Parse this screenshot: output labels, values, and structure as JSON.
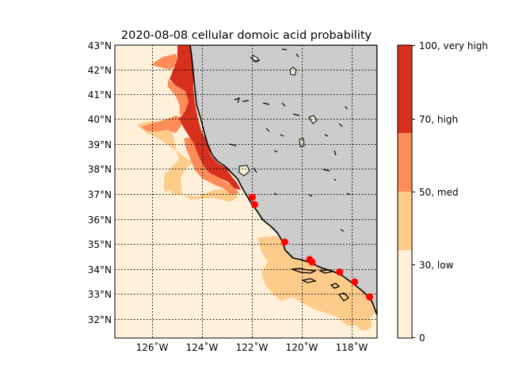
{
  "title": "2020-08-08 cellular domoic acid probability",
  "lat_labels": [
    "43°N",
    "42°N",
    "41°N",
    "40°N",
    "39°N",
    "38°N",
    "37°N",
    "36°N",
    "35°N",
    "34°N",
    "33°N",
    "32°N"
  ],
  "lon_labels": [
    "126˚W",
    "124˚W",
    "122˚W",
    "120˚W",
    "118˚W"
  ],
  "colorbar": {
    "labels": [
      "100, very high",
      "70, high",
      "50, med",
      "30, low",
      "0"
    ],
    "bands": [
      {
        "from": 70,
        "to": 100,
        "color": "#d7301f"
      },
      {
        "from": 50,
        "to": 70,
        "color": "#fc8d59"
      },
      {
        "from": 30,
        "to": 50,
        "color": "#fdcc8a"
      },
      {
        "from": 0,
        "to": 30,
        "color": "#fef0d9"
      }
    ]
  },
  "colors": {
    "land": "#cccccc",
    "ocean_low": "#fef0d9",
    "low": "#fdcc8a",
    "med": "#fc8d59",
    "high": "#d7301f",
    "station": "#ff0000"
  },
  "stations": [
    {
      "lon": -122.0,
      "lat": 36.9
    },
    {
      "lon": -121.9,
      "lat": 36.6
    },
    {
      "lon": -120.7,
      "lat": 35.1
    },
    {
      "lon": -119.7,
      "lat": 34.4
    },
    {
      "lon": -119.6,
      "lat": 34.3
    },
    {
      "lon": -118.5,
      "lat": 33.9
    },
    {
      "lon": -117.9,
      "lat": 33.5
    },
    {
      "lon": -117.3,
      "lat": 32.9
    }
  ]
}
